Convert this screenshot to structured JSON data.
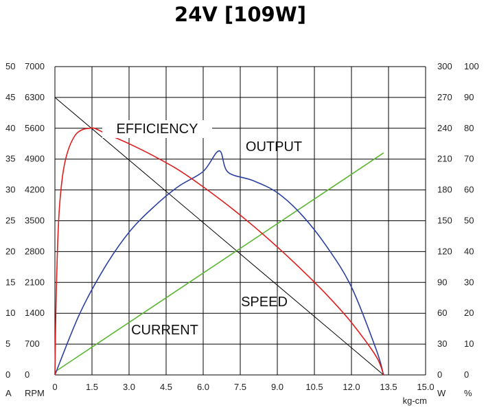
{
  "chart_data": {
    "type": "line",
    "title": "24V [109W]",
    "x_ticks": [
      "0",
      "1.5",
      "3.0",
      "4.5",
      "6.0",
      "7.5",
      "9.0",
      "10.5",
      "12.0",
      "13.5",
      "15.0"
    ],
    "x_unit": "kg-cm",
    "xlim": [
      0,
      15
    ],
    "left_axes": [
      {
        "unit": "A",
        "ticks": [
          "0",
          "5",
          "10",
          "15",
          "20",
          "25",
          "30",
          "35",
          "40",
          "45",
          "50"
        ],
        "ylim": [
          0,
          50
        ]
      },
      {
        "unit": "RPM",
        "ticks": [
          "0",
          "700",
          "1400",
          "2100",
          "2800",
          "3500",
          "4200",
          "4900",
          "5600",
          "6300",
          "7000"
        ],
        "ylim": [
          0,
          7000
        ]
      }
    ],
    "right_axes": [
      {
        "unit": "W",
        "ticks": [
          "0",
          "30",
          "60",
          "90",
          "120",
          "150",
          "180",
          "210",
          "240",
          "270",
          "300"
        ],
        "ylim": [
          0,
          300
        ]
      },
      {
        "unit": "%",
        "ticks": [
          "0",
          "10",
          "20",
          "30",
          "40",
          "50",
          "60",
          "70",
          "80",
          "90",
          "100"
        ],
        "ylim": [
          0,
          100
        ]
      }
    ],
    "grid": true,
    "series": [
      {
        "name": "SPEED",
        "axis": "RPM",
        "color": "#000000",
        "x": [
          0,
          13.3
        ],
        "y": [
          6300,
          0
        ]
      },
      {
        "name": "CURRENT",
        "axis": "A",
        "color": "#5bb532",
        "x": [
          0,
          13.3
        ],
        "y": [
          0.5,
          36
        ]
      },
      {
        "name": "OUTPUT",
        "axis": "W",
        "color": "#2b3fa0",
        "x": [
          0,
          1,
          2,
          3,
          4,
          5,
          6,
          6.65,
          7,
          8,
          9,
          10,
          11,
          12,
          13,
          13.3
        ],
        "y": [
          0,
          59.4,
          104.0,
          138.8,
          163.5,
          183.4,
          198.0,
          218.0,
          197.4,
          189.2,
          177.3,
          155.4,
          124.9,
          85.5,
          24.8,
          0
        ]
      },
      {
        "name": "EFFICIENCY",
        "axis": "%",
        "color": "#e01b1b",
        "x": [
          0,
          0.05,
          0.15,
          0.3,
          0.5,
          0.8,
          1.1,
          1.4,
          1.6,
          2,
          3,
          4,
          5,
          6,
          7,
          8,
          9,
          10,
          11,
          12,
          13,
          13.3
        ],
        "y": [
          0,
          25,
          50,
          64,
          72,
          77.5,
          79.5,
          80,
          80,
          78.5,
          75,
          71,
          66.5,
          61,
          55,
          48.5,
          41.5,
          34,
          26,
          17,
          6,
          0
        ]
      }
    ],
    "annotations": [
      "EFFICIENCY",
      "OUTPUT",
      "SPEED",
      "CURRENT"
    ]
  }
}
